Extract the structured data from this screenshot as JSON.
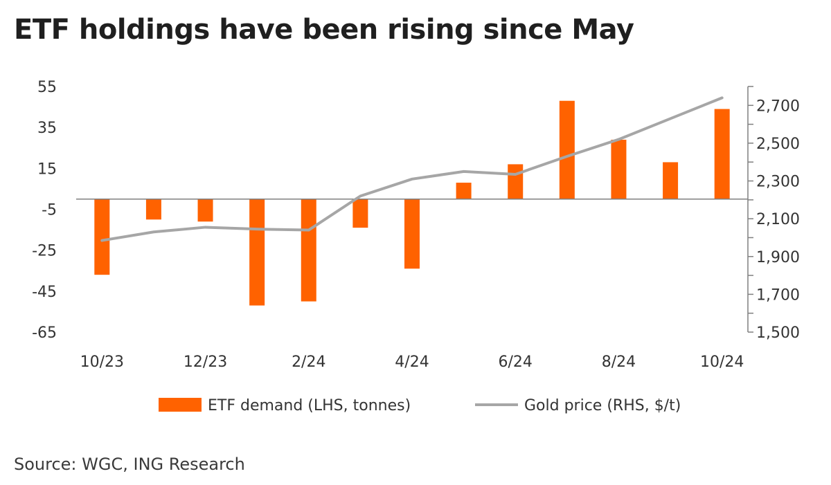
{
  "title": "ETF holdings have been rising since May",
  "source": "Source: WGC, ING Research",
  "colors": {
    "bar": "#ff6200",
    "line": "#a6a6a6",
    "axis": "#7f7f7f",
    "text": "#333333"
  },
  "chart_data": {
    "type": "bar",
    "categories": [
      "10/23",
      "11/23",
      "12/23",
      "1/24",
      "2/24",
      "3/24",
      "4/24",
      "5/24",
      "6/24",
      "7/24",
      "8/24",
      "9/24",
      "10/24"
    ],
    "x_tick_labels": [
      "10/23",
      "12/23",
      "2/24",
      "4/24",
      "6/24",
      "8/24",
      "10/24"
    ],
    "series": [
      {
        "name": "ETF demand (LHS, tonnes)",
        "type": "bar",
        "axis": "left",
        "values": [
          -37,
          -10,
          -11,
          -52,
          -50,
          -14,
          -34,
          8,
          17,
          48,
          29,
          18,
          44
        ]
      },
      {
        "name": "Gold price (RHS, $/t)",
        "type": "line",
        "axis": "right",
        "values": [
          1985,
          2030,
          2055,
          2045,
          2040,
          2220,
          2310,
          2350,
          2335,
          2430,
          2520,
          2630,
          2740
        ]
      }
    ],
    "y_left": {
      "ylim": [
        -65,
        55
      ],
      "ticks": [
        "55",
        "35",
        "15",
        "-5",
        "-25",
        "-45",
        "-65"
      ],
      "tick_values": [
        55,
        35,
        15,
        -5,
        -25,
        -45,
        -65
      ]
    },
    "y_right": {
      "ylim": [
        1500,
        2800
      ],
      "ticks": [
        "2,700",
        "2,500",
        "2,300",
        "2,100",
        "1,900",
        "1,700",
        "1,500"
      ],
      "tick_values": [
        2700,
        2500,
        2300,
        2100,
        1900,
        1700,
        1500
      ]
    },
    "legend": "bottom",
    "grid": false
  }
}
